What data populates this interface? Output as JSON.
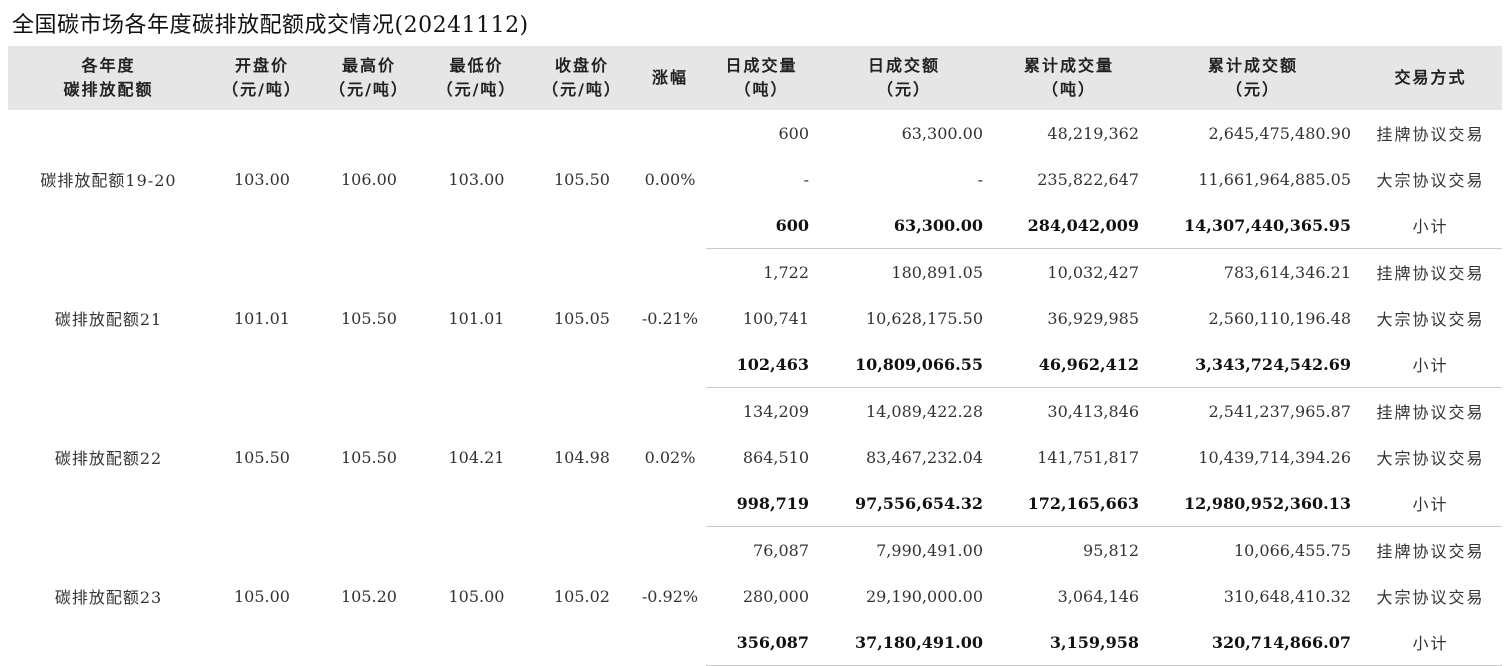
{
  "title": "全国碳市场各年度碳排放配额成交情况(20241112)",
  "headers": {
    "product": [
      "各年度",
      "碳排放配额"
    ],
    "open": [
      "开盘价",
      "（元/吨）"
    ],
    "high": [
      "最高价",
      "（元/吨）"
    ],
    "low": [
      "最低价",
      "（元/吨）"
    ],
    "close": [
      "收盘价",
      "（元/吨）"
    ],
    "change": [
      "涨幅"
    ],
    "daily_volume": [
      "日成交量",
      "（吨）"
    ],
    "daily_amount": [
      "日成交额",
      "（元）"
    ],
    "cum_volume": [
      "累计成交量",
      "（吨）"
    ],
    "cum_amount": [
      "累计成交额",
      "（元）"
    ],
    "mode": [
      "交易方式"
    ]
  },
  "groups": [
    {
      "product": "碳排放配额19-20",
      "open": "103.00",
      "high": "106.00",
      "low": "103.00",
      "close": "105.50",
      "change": "0.00%",
      "rows": [
        {
          "daily_volume": "600",
          "daily_amount": "63,300.00",
          "cum_volume": "48,219,362",
          "cum_amount": "2,645,475,480.90",
          "mode": "挂牌协议交易"
        },
        {
          "daily_volume": "-",
          "daily_amount": "-",
          "cum_volume": "235,822,647",
          "cum_amount": "11,661,964,885.05",
          "mode": "大宗协议交易"
        },
        {
          "daily_volume": "600",
          "daily_amount": "63,300.00",
          "cum_volume": "284,042,009",
          "cum_amount": "14,307,440,365.95",
          "mode": "小计"
        }
      ]
    },
    {
      "product": "碳排放配额21",
      "open": "101.01",
      "high": "105.50",
      "low": "101.01",
      "close": "105.05",
      "change": "-0.21%",
      "rows": [
        {
          "daily_volume": "1,722",
          "daily_amount": "180,891.05",
          "cum_volume": "10,032,427",
          "cum_amount": "783,614,346.21",
          "mode": "挂牌协议交易"
        },
        {
          "daily_volume": "100,741",
          "daily_amount": "10,628,175.50",
          "cum_volume": "36,929,985",
          "cum_amount": "2,560,110,196.48",
          "mode": "大宗协议交易"
        },
        {
          "daily_volume": "102,463",
          "daily_amount": "10,809,066.55",
          "cum_volume": "46,962,412",
          "cum_amount": "3,343,724,542.69",
          "mode": "小计"
        }
      ]
    },
    {
      "product": "碳排放配额22",
      "open": "105.50",
      "high": "105.50",
      "low": "104.21",
      "close": "104.98",
      "change": "0.02%",
      "rows": [
        {
          "daily_volume": "134,209",
          "daily_amount": "14,089,422.28",
          "cum_volume": "30,413,846",
          "cum_amount": "2,541,237,965.87",
          "mode": "挂牌协议交易"
        },
        {
          "daily_volume": "864,510",
          "daily_amount": "83,467,232.04",
          "cum_volume": "141,751,817",
          "cum_amount": "10,439,714,394.26",
          "mode": "大宗协议交易"
        },
        {
          "daily_volume": "998,719",
          "daily_amount": "97,556,654.32",
          "cum_volume": "172,165,663",
          "cum_amount": "12,980,952,360.13",
          "mode": "小计"
        }
      ]
    },
    {
      "product": "碳排放配额23",
      "open": "105.00",
      "high": "105.20",
      "low": "105.00",
      "close": "105.02",
      "change": "-0.92%",
      "rows": [
        {
          "daily_volume": "76,087",
          "daily_amount": "7,990,491.00",
          "cum_volume": "95,812",
          "cum_amount": "10,066,455.75",
          "mode": "挂牌协议交易"
        },
        {
          "daily_volume": "280,000",
          "daily_amount": "29,190,000.00",
          "cum_volume": "3,064,146",
          "cum_amount": "310,648,410.32",
          "mode": "大宗协议交易"
        },
        {
          "daily_volume": "356,087",
          "daily_amount": "37,180,491.00",
          "cum_volume": "3,159,958",
          "cum_amount": "320,714,866.07",
          "mode": "小计"
        }
      ]
    }
  ]
}
